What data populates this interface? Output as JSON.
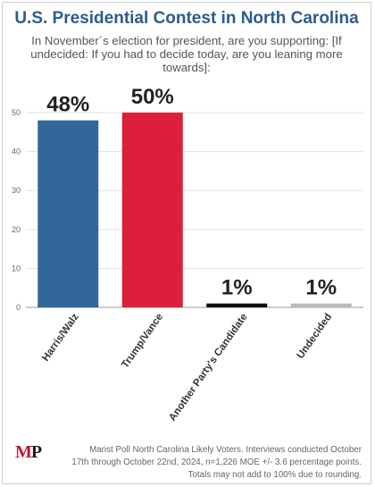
{
  "header": {
    "title": "U.S. Presidential Contest in North Carolina",
    "question": "In November´s election for president, are you supporting: [If undecided: If you had to decide today, are you leaning more towards]:"
  },
  "footer": {
    "logo_m": "M",
    "logo_p": "P",
    "note_line1": "Marist Poll North Carolina Likely Voters. Interviews conducted October",
    "note_line2": "17th through October 22nd, 2024, n=1,226 MOE +/- 3.6 percentage points.",
    "note_line3": "Totals may not add to 100% due to rounding."
  },
  "chart_data": {
    "type": "bar",
    "categories": [
      "Harris/Walz",
      "Trump/Vance",
      "Another Party's Candidate",
      "Undecided"
    ],
    "values": [
      48,
      50,
      1,
      1
    ],
    "data_labels": [
      "48%",
      "50%",
      "1%",
      "1%"
    ],
    "colors": [
      "#336699",
      "#dc1f3a",
      "#111111",
      "#bbbbbb"
    ],
    "ylim": [
      0,
      50
    ],
    "yticks": [
      0,
      10,
      20,
      30,
      40,
      50
    ],
    "grid": true,
    "title": "",
    "xlabel": "",
    "ylabel": ""
  }
}
